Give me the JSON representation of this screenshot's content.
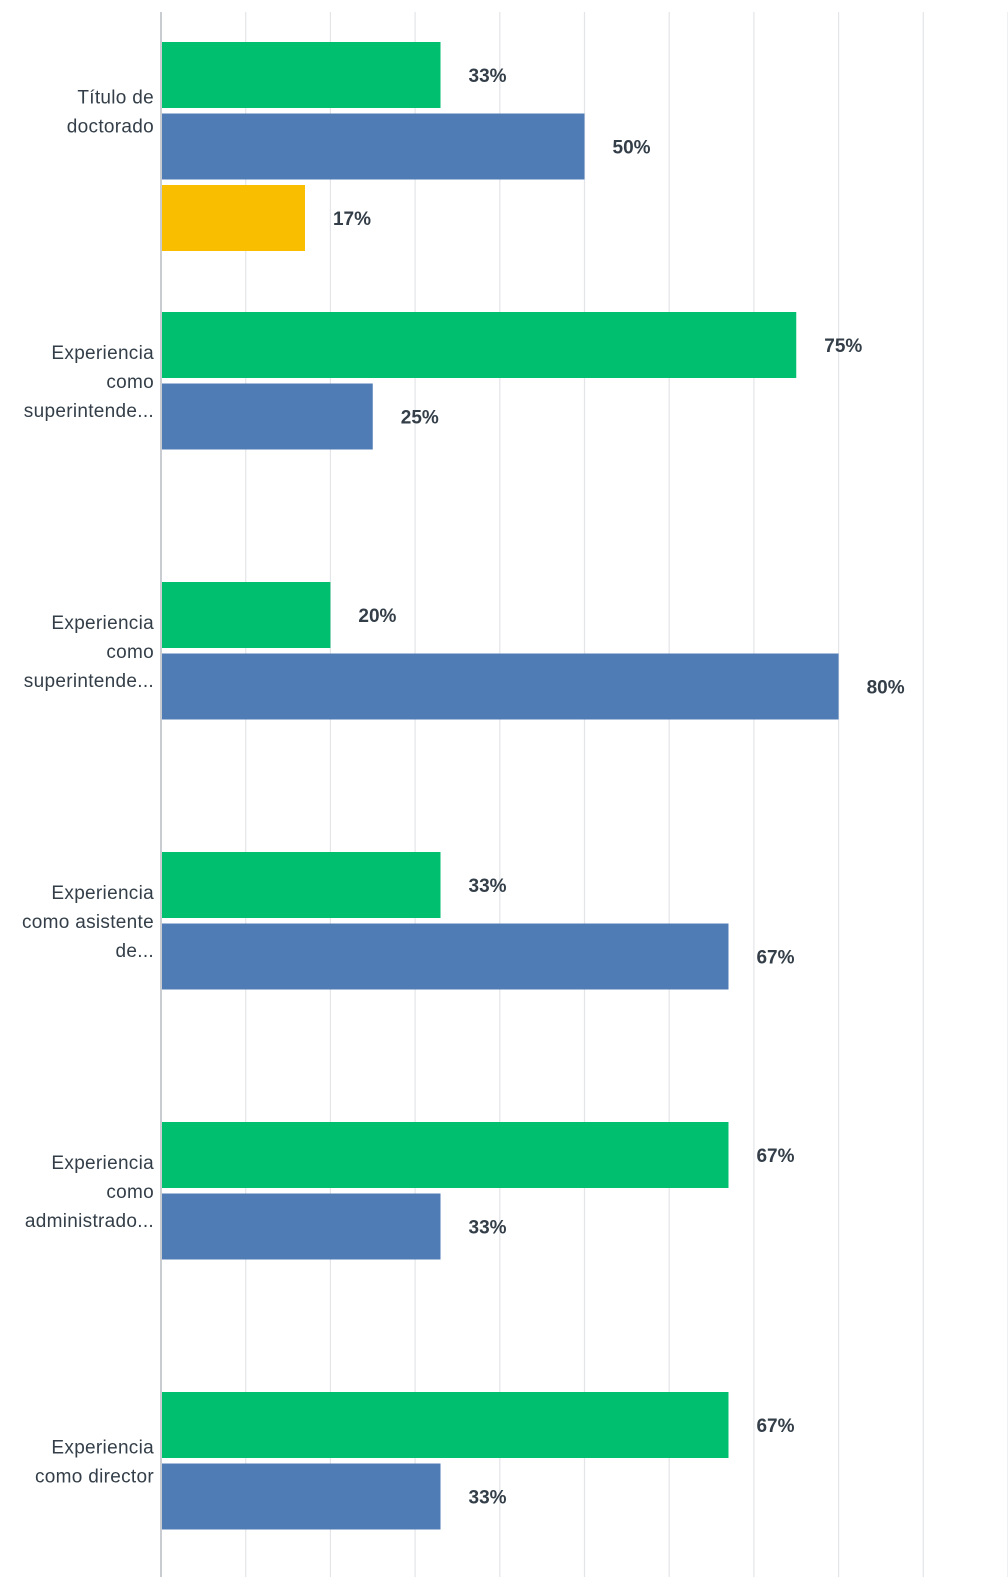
{
  "chart_data": {
    "type": "bar",
    "orientation": "horizontal",
    "xlim": [
      0,
      100
    ],
    "grid": true,
    "categories": [
      [
        "Título de",
        "doctorado"
      ],
      [
        "Experiencia",
        "como",
        "superintende..."
      ],
      [
        "Experiencia",
        "como",
        "superintende..."
      ],
      [
        "Experiencia",
        "como asistente",
        "de..."
      ],
      [
        "Experiencia",
        "como",
        "administrado..."
      ],
      [
        "Experiencia",
        "como director"
      ]
    ],
    "series": [
      {
        "color": "#00bf6f",
        "values": [
          33,
          75,
          20,
          33,
          67,
          67
        ]
      },
      {
        "color": "#507cb6",
        "values": [
          50,
          25,
          80,
          67,
          33,
          33
        ]
      },
      {
        "color": "#f9be00",
        "values": [
          17,
          null,
          null,
          null,
          null,
          null
        ]
      }
    ],
    "value_suffix": "%"
  }
}
